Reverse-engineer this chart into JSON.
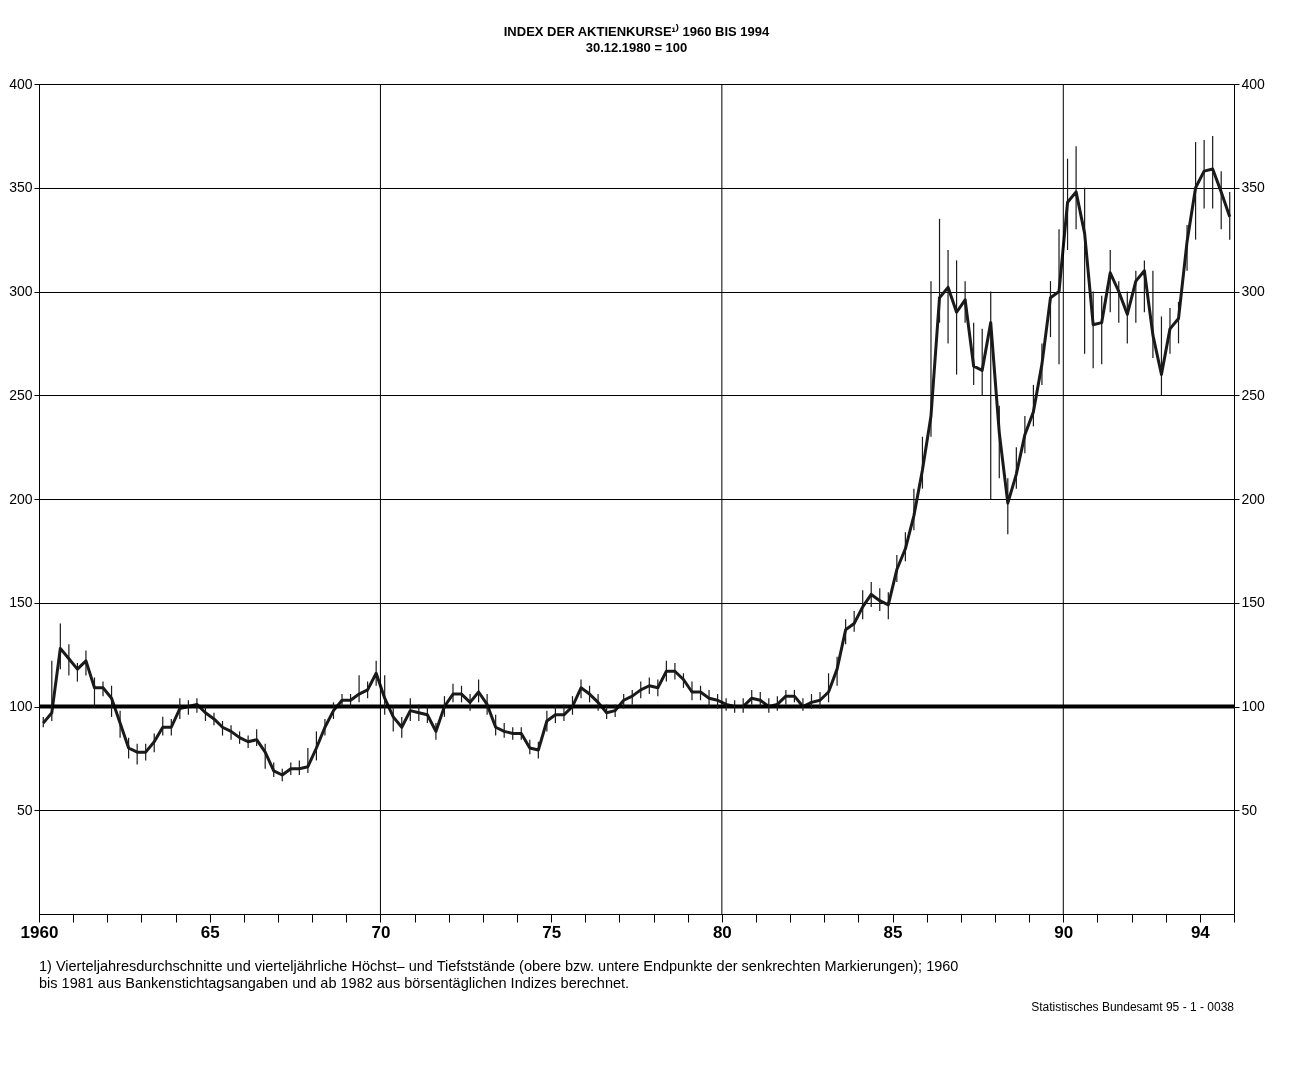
{
  "chart_data": {
    "type": "line",
    "title": "INDEX DER AKTIENKURSE¹⁾ 1960 BIS 1994",
    "subtitle": "30.12.1980 = 100",
    "annotations": [
      "1) Vierteljahresdurchschnitte und vierteljährliche Höchst– und Tiefststände (obere bzw. untere Endpunkte der senkrechten Markierungen); 1960 bis 1981 aus Bankenstichtagsangaben und ab 1982 aus börsentäglichen Indizes berechnet.",
      "Statistisches Bundesamt 95 - 1 -  0038"
    ],
    "x": [
      1960.125,
      1960.375,
      1960.625,
      1960.875,
      1961.125,
      1961.375,
      1961.625,
      1961.875,
      1962.125,
      1962.375,
      1962.625,
      1962.875,
      1963.125,
      1963.375,
      1963.625,
      1963.875,
      1964.125,
      1964.375,
      1964.625,
      1964.875,
      1965.125,
      1965.375,
      1965.625,
      1965.875,
      1966.125,
      1966.375,
      1966.625,
      1966.875,
      1967.125,
      1967.375,
      1967.625,
      1967.875,
      1968.125,
      1968.375,
      1968.625,
      1968.875,
      1969.125,
      1969.375,
      1969.625,
      1969.875,
      1970.125,
      1970.375,
      1970.625,
      1970.875,
      1971.125,
      1971.375,
      1971.625,
      1971.875,
      1972.125,
      1972.375,
      1972.625,
      1972.875,
      1973.125,
      1973.375,
      1973.625,
      1973.875,
      1974.125,
      1974.375,
      1974.625,
      1974.875,
      1975.125,
      1975.375,
      1975.625,
      1975.875,
      1976.125,
      1976.375,
      1976.625,
      1976.875,
      1977.125,
      1977.375,
      1977.625,
      1977.875,
      1978.125,
      1978.375,
      1978.625,
      1978.875,
      1979.125,
      1979.375,
      1979.625,
      1979.875,
      1980.125,
      1980.375,
      1980.625,
      1980.875,
      1981.125,
      1981.375,
      1981.625,
      1981.875,
      1982.125,
      1982.375,
      1982.625,
      1982.875,
      1983.125,
      1983.375,
      1983.625,
      1983.875,
      1984.125,
      1984.375,
      1984.625,
      1984.875,
      1985.125,
      1985.375,
      1985.625,
      1985.875,
      1986.125,
      1986.375,
      1986.625,
      1986.875,
      1987.125,
      1987.375,
      1987.625,
      1987.875,
      1988.125,
      1988.375,
      1988.625,
      1988.875,
      1989.125,
      1989.375,
      1989.625,
      1989.875,
      1990.125,
      1990.375,
      1990.625,
      1990.875,
      1991.125,
      1991.375,
      1991.625,
      1991.875,
      1992.125,
      1992.375,
      1992.625,
      1992.875,
      1993.125,
      1993.375,
      1993.625,
      1993.875,
      1994.125,
      1994.375,
      1994.625,
      1994.875
    ],
    "series": [
      {
        "color": "#1a1a1a",
        "values": [
          92,
          97,
          128,
          123,
          118,
          122,
          109,
          109,
          104,
          92,
          80,
          78,
          78,
          83,
          90,
          90,
          99,
          100,
          101,
          97,
          94,
          90,
          88,
          85,
          83,
          84,
          78,
          69,
          67,
          70,
          70,
          71,
          80,
          90,
          98,
          103,
          103,
          106,
          108,
          116,
          104,
          95,
          90,
          98,
          97,
          96,
          88,
          100,
          106,
          106,
          102,
          107,
          101,
          90,
          88,
          87,
          87,
          80,
          79,
          93,
          96,
          96,
          100,
          109,
          106,
          102,
          97,
          98,
          103,
          105,
          108,
          110,
          109,
          117,
          117,
          113,
          107,
          107,
          104,
          103,
          101,
          100,
          100,
          104,
          103,
          100,
          101,
          105,
          105,
          100,
          102,
          103,
          107,
          118,
          137,
          140,
          148,
          154,
          151,
          149,
          166,
          176,
          192,
          214,
          240,
          297,
          302,
          290,
          296,
          264,
          262,
          285,
          232,
          198,
          212,
          231,
          242,
          265,
          297,
          300,
          343,
          348,
          328,
          284,
          285,
          309,
          300,
          289,
          305,
          310,
          279,
          260,
          282,
          287,
          324,
          350,
          358,
          359,
          348,
          336
        ],
        "errors": [
          [
            90,
            95
          ],
          [
            93,
            122
          ],
          [
            118,
            140
          ],
          [
            115,
            130
          ],
          [
            112,
            121
          ],
          [
            115,
            127
          ],
          [
            100,
            114
          ],
          [
            105,
            112
          ],
          [
            95,
            110
          ],
          [
            85,
            98
          ],
          [
            75,
            85
          ],
          [
            72,
            82
          ],
          [
            74,
            82
          ],
          [
            78,
            87
          ],
          [
            86,
            95
          ],
          [
            86,
            94
          ],
          [
            94,
            104
          ],
          [
            96,
            103
          ],
          [
            97,
            104
          ],
          [
            93,
            100
          ],
          [
            91,
            97
          ],
          [
            86,
            93
          ],
          [
            84,
            91
          ],
          [
            82,
            88
          ],
          [
            80,
            86
          ],
          [
            81,
            89
          ],
          [
            70,
            82
          ],
          [
            66,
            73
          ],
          [
            64,
            70
          ],
          [
            67,
            73
          ],
          [
            67,
            74
          ],
          [
            68,
            80
          ],
          [
            74,
            88
          ],
          [
            86,
            94
          ],
          [
            94,
            102
          ],
          [
            100,
            106
          ],
          [
            100,
            106
          ],
          [
            102,
            115
          ],
          [
            104,
            112
          ],
          [
            110,
            122
          ],
          [
            96,
            115
          ],
          [
            88,
            100
          ],
          [
            85,
            95
          ],
          [
            93,
            104
          ],
          [
            93,
            101
          ],
          [
            92,
            100
          ],
          [
            84,
            92
          ],
          [
            95,
            105
          ],
          [
            102,
            111
          ],
          [
            102,
            110
          ],
          [
            98,
            106
          ],
          [
            102,
            113
          ],
          [
            96,
            106
          ],
          [
            86,
            96
          ],
          [
            85,
            92
          ],
          [
            84,
            90
          ],
          [
            84,
            90
          ],
          [
            77,
            84
          ],
          [
            75,
            83
          ],
          [
            88,
            98
          ],
          [
            92,
            100
          ],
          [
            93,
            101
          ],
          [
            96,
            105
          ],
          [
            104,
            113
          ],
          [
            102,
            110
          ],
          [
            98,
            106
          ],
          [
            94,
            101
          ],
          [
            95,
            101
          ],
          [
            99,
            106
          ],
          [
            101,
            108
          ],
          [
            104,
            112
          ],
          [
            106,
            114
          ],
          [
            105,
            113
          ],
          [
            112,
            122
          ],
          [
            113,
            121
          ],
          [
            109,
            116
          ],
          [
            103,
            112
          ],
          [
            103,
            110
          ],
          [
            100,
            108
          ],
          [
            99,
            106
          ],
          [
            98,
            104
          ],
          [
            97,
            103
          ],
          [
            97,
            104
          ],
          [
            101,
            108
          ],
          [
            100,
            107
          ],
          [
            97,
            104
          ],
          [
            98,
            105
          ],
          [
            101,
            108
          ],
          [
            102,
            108
          ],
          [
            98,
            104
          ],
          [
            99,
            106
          ],
          [
            99,
            107
          ],
          [
            102,
            116
          ],
          [
            110,
            124
          ],
          [
            130,
            142
          ],
          [
            136,
            146
          ],
          [
            142,
            156
          ],
          [
            148,
            160
          ],
          [
            146,
            157
          ],
          [
            142,
            155
          ],
          [
            160,
            173
          ],
          [
            170,
            184
          ],
          [
            185,
            205
          ],
          [
            205,
            230
          ],
          [
            230,
            305
          ],
          [
            285,
            335
          ],
          [
            275,
            320
          ],
          [
            260,
            315
          ],
          [
            285,
            305
          ],
          [
            255,
            285
          ],
          [
            250,
            282
          ],
          [
            200,
            300
          ],
          [
            210,
            245
          ],
          [
            183,
            210
          ],
          [
            205,
            225
          ],
          [
            222,
            240
          ],
          [
            235,
            255
          ],
          [
            255,
            275
          ],
          [
            278,
            305
          ],
          [
            265,
            330
          ],
          [
            320,
            364
          ],
          [
            330,
            370
          ],
          [
            270,
            350
          ],
          [
            263,
            300
          ],
          [
            265,
            298
          ],
          [
            290,
            320
          ],
          [
            285,
            305
          ],
          [
            275,
            300
          ],
          [
            285,
            310
          ],
          [
            290,
            315
          ],
          [
            268,
            310
          ],
          [
            250,
            288
          ],
          [
            270,
            292
          ],
          [
            275,
            295
          ],
          [
            310,
            332
          ],
          [
            325,
            372
          ],
          [
            340,
            373
          ],
          [
            340,
            375
          ],
          [
            330,
            358
          ],
          [
            325,
            348
          ]
        ]
      }
    ],
    "xlim": [
      1960,
      1995
    ],
    "xticks": [
      1960,
      {
        "value": 1965,
        "label": "65"
      },
      {
        "value": 1970,
        "label": "70"
      },
      {
        "value": 1975,
        "label": "75"
      },
      {
        "value": 1980,
        "label": "80"
      },
      {
        "value": 1985,
        "label": "85"
      },
      {
        "value": 1990,
        "label": "90"
      },
      {
        "value": 1994,
        "label": "94"
      },
      {
        "value": 1961,
        "label": null
      },
      {
        "value": 1962,
        "label": null
      },
      {
        "value": 1963,
        "label": null
      },
      {
        "value": 1964,
        "label": null
      },
      {
        "value": 1966,
        "label": null
      },
      {
        "value": 1967,
        "label": null
      },
      {
        "value": 1968,
        "label": null
      },
      {
        "value": 1969,
        "label": null
      },
      {
        "value": 1971,
        "label": null
      },
      {
        "value": 1972,
        "label": null
      },
      {
        "value": 1973,
        "label": null
      },
      {
        "value": 1974,
        "label": null
      },
      {
        "value": 1976,
        "label": null
      },
      {
        "value": 1977,
        "label": null
      },
      {
        "value": 1978,
        "label": null
      },
      {
        "value": 1979,
        "label": null
      },
      {
        "value": 1981,
        "label": null
      },
      {
        "value": 1982,
        "label": null
      },
      {
        "value": 1983,
        "label": null
      },
      {
        "value": 1984,
        "label": null
      },
      {
        "value": 1986,
        "label": null
      },
      {
        "value": 1987,
        "label": null
      },
      {
        "value": 1988,
        "label": null
      },
      {
        "value": 1989,
        "label": null
      },
      {
        "value": 1991,
        "label": null
      },
      {
        "value": 1992,
        "label": null
      },
      {
        "value": 1993,
        "label": null
      },
      {
        "value": 1995,
        "label": null
      }
    ],
    "ylim": [
      0,
      400
    ],
    "yticks": [
      50,
      100,
      150,
      200,
      250,
      300,
      350,
      400
    ],
    "y2lim": [
      0,
      400
    ],
    "y2ticks": [
      50,
      100,
      150,
      200,
      250,
      300,
      350,
      400
    ],
    "grid": "y",
    "marker": "none",
    "line_style": "solid",
    "ref_lines": [
      {
        "axis": "y",
        "value": 100,
        "color": "#000000"
      },
      {
        "axis": "x",
        "value": 1970,
        "color": "#000000"
      },
      {
        "axis": "x",
        "value": 1980,
        "color": "#000000"
      },
      {
        "axis": "x",
        "value": 1990,
        "color": "#000000"
      }
    ]
  }
}
